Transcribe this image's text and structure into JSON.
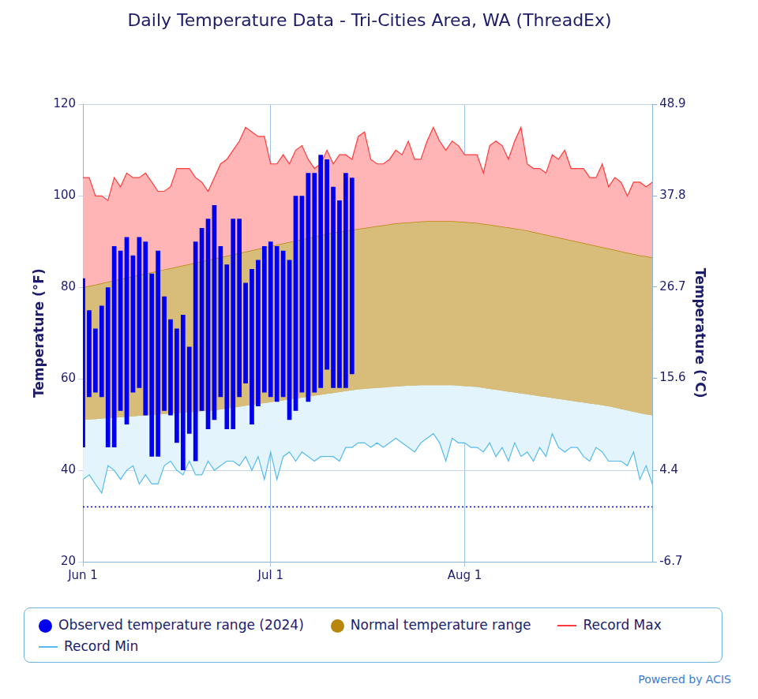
{
  "chart_data": {
    "type": "bar",
    "title": "Daily Temperature Data - Tri-Cities Area, WA (ThreadEx)",
    "y_label": "Temperature (°F)",
    "y2_label": "Temperature (°C)",
    "source": "Powered by ACIS",
    "legend": "bottom",
    "grid": true,
    "ylim": [
      20,
      120
    ],
    "yticks": [
      20,
      40,
      60,
      80,
      100,
      120
    ],
    "y2lim": [
      -6.7,
      48.9
    ],
    "y2ticks": [
      -6.7,
      4.4,
      15.6,
      26.7,
      37.8,
      48.9
    ],
    "reference_line": {
      "value": 32,
      "line_style": "dotted",
      "color": "#0000cd"
    },
    "categories": [
      "Jun 1",
      null,
      null,
      null,
      null,
      null,
      null,
      null,
      null,
      null,
      null,
      null,
      null,
      null,
      null,
      null,
      null,
      null,
      null,
      null,
      null,
      null,
      null,
      null,
      null,
      null,
      null,
      null,
      null,
      null,
      "Jul 1",
      null,
      null,
      null,
      null,
      null,
      null,
      null,
      null,
      null,
      null,
      null,
      null,
      null,
      null,
      null,
      null,
      null,
      null,
      null,
      null,
      null,
      null,
      null,
      null,
      null,
      null,
      null,
      null,
      null,
      null,
      "Aug 1",
      null,
      null,
      null,
      null,
      null,
      null,
      null,
      null,
      null,
      null,
      null,
      null,
      null,
      null,
      null,
      null,
      null,
      null,
      null,
      null,
      null,
      null,
      null,
      null,
      null,
      null,
      null,
      null,
      null,
      null
    ],
    "series": [
      {
        "name": "Observed temperature range (2024)",
        "type": "bar",
        "color": "#0000ee",
        "marker": "circle",
        "low": [
          45,
          56,
          57,
          56,
          45,
          45,
          53,
          50,
          57,
          58,
          52,
          43,
          43,
          53,
          52,
          46,
          40,
          48,
          42,
          53,
          49,
          51,
          56,
          49,
          49,
          56,
          59,
          50,
          54,
          57,
          56,
          55,
          56,
          51,
          53,
          57,
          55,
          57,
          58,
          62,
          58,
          58,
          58,
          61,
          null,
          null,
          null,
          null,
          null,
          null,
          null,
          null,
          null,
          null,
          null,
          null,
          null,
          null,
          null,
          null,
          null,
          null,
          null,
          null,
          null,
          null,
          null,
          null,
          null,
          null,
          null,
          null,
          null,
          null,
          null,
          null,
          null,
          null,
          null,
          null,
          null,
          null,
          null,
          null,
          null,
          null,
          null,
          null,
          null,
          null,
          null,
          null
        ],
        "high": [
          82,
          75,
          71,
          76,
          80,
          89,
          88,
          91,
          87,
          91,
          90,
          83,
          88,
          78,
          73,
          71,
          74,
          67,
          90,
          93,
          95,
          98,
          89,
          85,
          95,
          95,
          81,
          84,
          86,
          89,
          90,
          89,
          88,
          86,
          100,
          100,
          105,
          105,
          109,
          108,
          102,
          99,
          105,
          104,
          null,
          null,
          null,
          null,
          null,
          null,
          null,
          null,
          null,
          null,
          null,
          null,
          null,
          null,
          null,
          null,
          null,
          null,
          null,
          null,
          null,
          null,
          null,
          null,
          null,
          null,
          null,
          null,
          null,
          null,
          null,
          null,
          null,
          null,
          null,
          null,
          null,
          null,
          null,
          null,
          null,
          null,
          null,
          null,
          null,
          null,
          null,
          null
        ]
      },
      {
        "name": "Normal temperature range",
        "type": "range",
        "color": "#b8860b",
        "marker": "circle",
        "low": [
          51,
          51.1,
          51.2,
          51.3,
          51.4,
          51.5,
          51.6,
          51.7,
          51.8,
          51.9,
          52,
          52.1,
          52.2,
          52.3,
          52.4,
          52.5,
          52.6,
          52.7,
          52.8,
          52.9,
          53,
          53.1,
          53.3,
          53.5,
          53.7,
          53.9,
          54.1,
          54.3,
          54.5,
          54.7,
          54.9,
          55.1,
          55.3,
          55.5,
          55.7,
          55.9,
          56.1,
          56.3,
          56.5,
          56.7,
          56.9,
          57.1,
          57.3,
          57.5,
          57.7,
          57.8,
          57.9,
          58,
          58.1,
          58.2,
          58.3,
          58.4,
          58.5,
          58.5,
          58.6,
          58.6,
          58.6,
          58.6,
          58.6,
          58.6,
          58.5,
          58.4,
          58.3,
          58.2,
          58,
          57.8,
          57.6,
          57.4,
          57.2,
          57,
          56.8,
          56.6,
          56.4,
          56.2,
          56,
          55.8,
          55.6,
          55.4,
          55.2,
          55,
          54.8,
          54.6,
          54.4,
          54.2,
          54,
          53.7,
          53.4,
          53.1,
          52.8,
          52.5,
          52.2,
          52
        ],
        "high": [
          80,
          80.3,
          80.6,
          80.9,
          81.2,
          81.5,
          81.8,
          82.1,
          82.4,
          82.7,
          83,
          83.3,
          83.6,
          83.9,
          84.2,
          84.5,
          84.8,
          85.1,
          85.4,
          85.7,
          86,
          86.3,
          86.6,
          86.9,
          87.2,
          87.5,
          87.8,
          88.1,
          88.4,
          88.7,
          89,
          89.3,
          89.6,
          89.9,
          90.2,
          90.5,
          90.8,
          91.1,
          91.4,
          91.7,
          92,
          92.2,
          92.4,
          92.6,
          92.8,
          93,
          93.2,
          93.4,
          93.6,
          93.8,
          94,
          94.1,
          94.2,
          94.3,
          94.4,
          94.5,
          94.5,
          94.5,
          94.5,
          94.5,
          94.4,
          94.3,
          94.2,
          94.1,
          93.9,
          93.7,
          93.5,
          93.3,
          93.1,
          92.9,
          92.7,
          92.4,
          92.1,
          91.8,
          91.5,
          91.2,
          90.9,
          90.6,
          90.3,
          90,
          89.7,
          89.4,
          89.1,
          88.8,
          88.5,
          88.2,
          87.9,
          87.6,
          87.3,
          87,
          86.8,
          86.5
        ]
      },
      {
        "name": "Record Max",
        "type": "line",
        "color": "#ff3b3b",
        "line_style": "solid",
        "values": [
          104,
          104,
          100,
          100,
          99,
          104,
          102,
          105,
          104,
          104,
          105,
          103,
          101,
          101,
          102,
          106,
          106,
          106,
          104,
          103,
          101,
          104,
          107,
          108,
          110,
          112,
          115,
          114,
          113,
          113,
          107,
          107,
          109,
          107,
          110,
          111,
          108,
          106,
          107,
          110,
          107,
          109,
          109,
          108,
          113,
          114,
          108,
          107,
          107,
          108,
          110,
          109,
          112,
          108,
          108,
          112,
          115,
          112,
          110,
          112,
          111,
          109,
          109,
          109,
          105,
          111,
          112,
          111,
          108,
          112,
          115,
          107,
          106,
          106,
          105,
          109,
          108,
          110,
          106,
          106,
          106,
          104,
          104,
          107,
          102,
          104,
          103,
          100,
          103,
          103,
          102,
          103
        ]
      },
      {
        "name": "Record Min",
        "type": "line",
        "color": "#55bbee",
        "line_style": "solid",
        "values": [
          38,
          39,
          37,
          35,
          41,
          40,
          38,
          40,
          41,
          37,
          39,
          37,
          37,
          41,
          42,
          40,
          39,
          42,
          39,
          39,
          42,
          40,
          41,
          42,
          42,
          41,
          43,
          40,
          43,
          38,
          44,
          38,
          43,
          44,
          42,
          44,
          43,
          42,
          43,
          43,
          43,
          42,
          45,
          45,
          46,
          46,
          45,
          46,
          45,
          46,
          47,
          46,
          45,
          44,
          46,
          47,
          48,
          46,
          42,
          47,
          46,
          46,
          45,
          45,
          44,
          46,
          43,
          45,
          42,
          46,
          43,
          44,
          42,
          45,
          43,
          48,
          45,
          44,
          45,
          45,
          43,
          42,
          45,
          44,
          42,
          42,
          42,
          41,
          44,
          38,
          41,
          37
        ]
      }
    ]
  }
}
